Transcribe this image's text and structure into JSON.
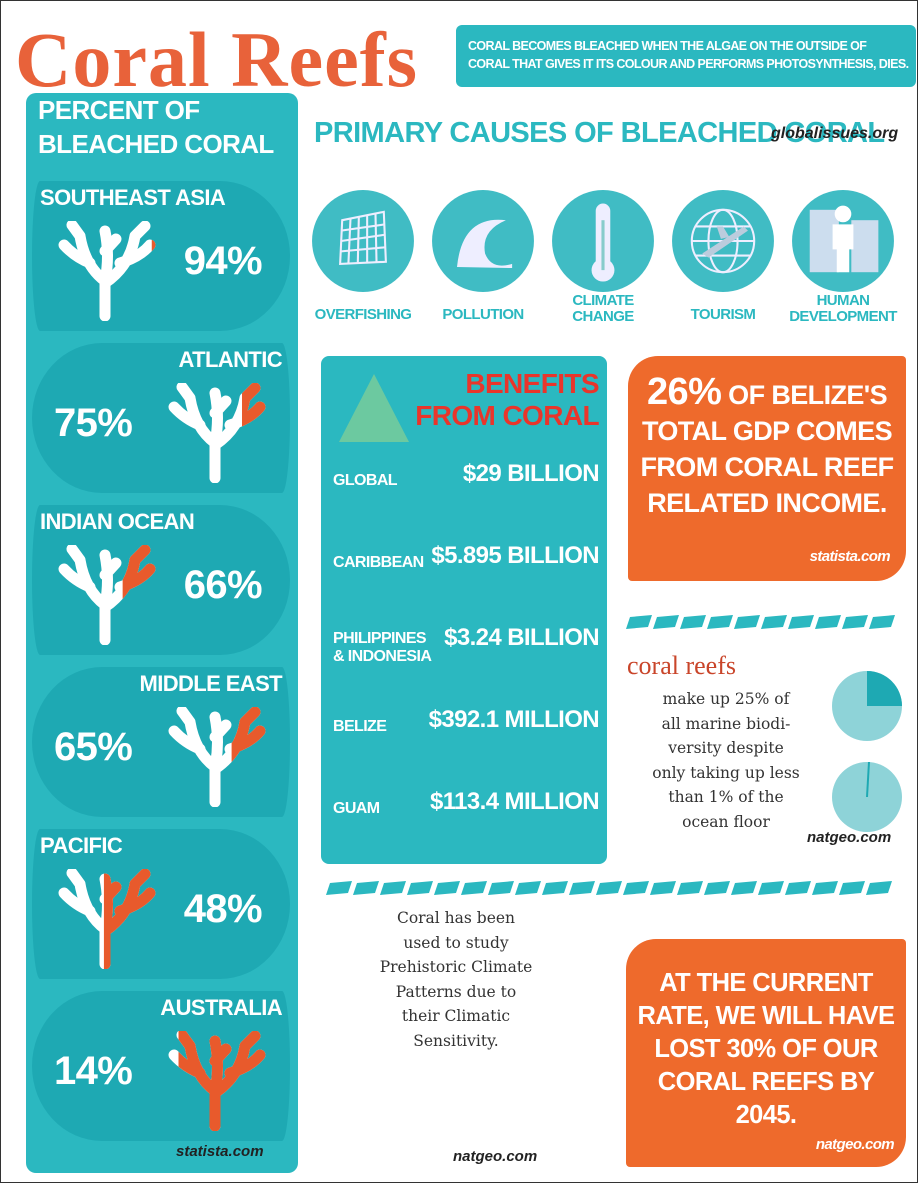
{
  "header": {
    "title": "Coral Reefs",
    "note": [
      "CORAL BECOMES BLEACHED WHEN THE ALGAE ON THE OUTSIDE OF",
      "CORAL THAT GIVES IT ITS COLOUR AND PERFORMS PHOTOSYNTHESIS, DIES."
    ]
  },
  "bleached": {
    "title": [
      "PERCENT OF",
      "BLEACHED CORAL"
    ],
    "regions": [
      {
        "name": "SOUTHEAST ASIA",
        "percent": "94%"
      },
      {
        "name": "ATLANTIC",
        "percent": "75%"
      },
      {
        "name": "INDIAN OCEAN",
        "percent": "66%"
      },
      {
        "name": "MIDDLE EAST",
        "percent": "65%"
      },
      {
        "name": "PACIFIC",
        "percent": "48%"
      },
      {
        "name": "AUSTRALIA",
        "percent": "14%"
      }
    ],
    "source": "statista.com"
  },
  "causes": {
    "title": "PRIMARY CAUSES OF BLEACHED CORAL",
    "source": "globalissues.org",
    "items": [
      [
        "OVERFISHING"
      ],
      [
        "POLLUTION"
      ],
      [
        "CLIMATE",
        "CHANGE"
      ],
      [
        "TOURISM"
      ],
      [
        "HUMAN",
        "DEVELOPMENT"
      ]
    ]
  },
  "benefits": {
    "title": [
      "BENEFITS",
      "FROM CORAL"
    ],
    "rows": [
      {
        "region": [
          "GLOBAL"
        ],
        "value": "$29 BILLION"
      },
      {
        "region": [
          "CARIBBEAN"
        ],
        "value": "$5.895 BILLION"
      },
      {
        "region": [
          "PHILIPPINES",
          "& INDONESIA"
        ],
        "value": "$3.24 BILLION"
      },
      {
        "region": [
          "BELIZE"
        ],
        "value": "$392.1 MILLION"
      },
      {
        "region": [
          "GUAM"
        ],
        "value": "$113.4 MILLION"
      }
    ]
  },
  "belize": {
    "highlight": "26%",
    "lines": [
      "OF BELIZE'S",
      "TOTAL GDP COMES",
      "FROM CORAL REEF",
      "RELATED INCOME."
    ],
    "source": "statista.com"
  },
  "biodiversity": {
    "heading": "coral reefs",
    "lines": [
      "make up 25% of",
      "all marine biodi-",
      "versity despite",
      "only taking up less",
      "than 1% of the",
      "ocean floor"
    ],
    "source": "natgeo.com"
  },
  "climate": {
    "lines": [
      "Coral has been",
      "used to study",
      "Prehistoric Climate",
      "Patterns due to",
      "their Climatic",
      "Sensitivity."
    ],
    "source": "natgeo.com"
  },
  "forecast": {
    "lines": [
      "AT THE CURRENT",
      "RATE, WE WILL HAVE",
      "LOST 30% OF OUR",
      "CORAL REEFS BY",
      "2045."
    ],
    "source": "natgeo.com"
  }
}
